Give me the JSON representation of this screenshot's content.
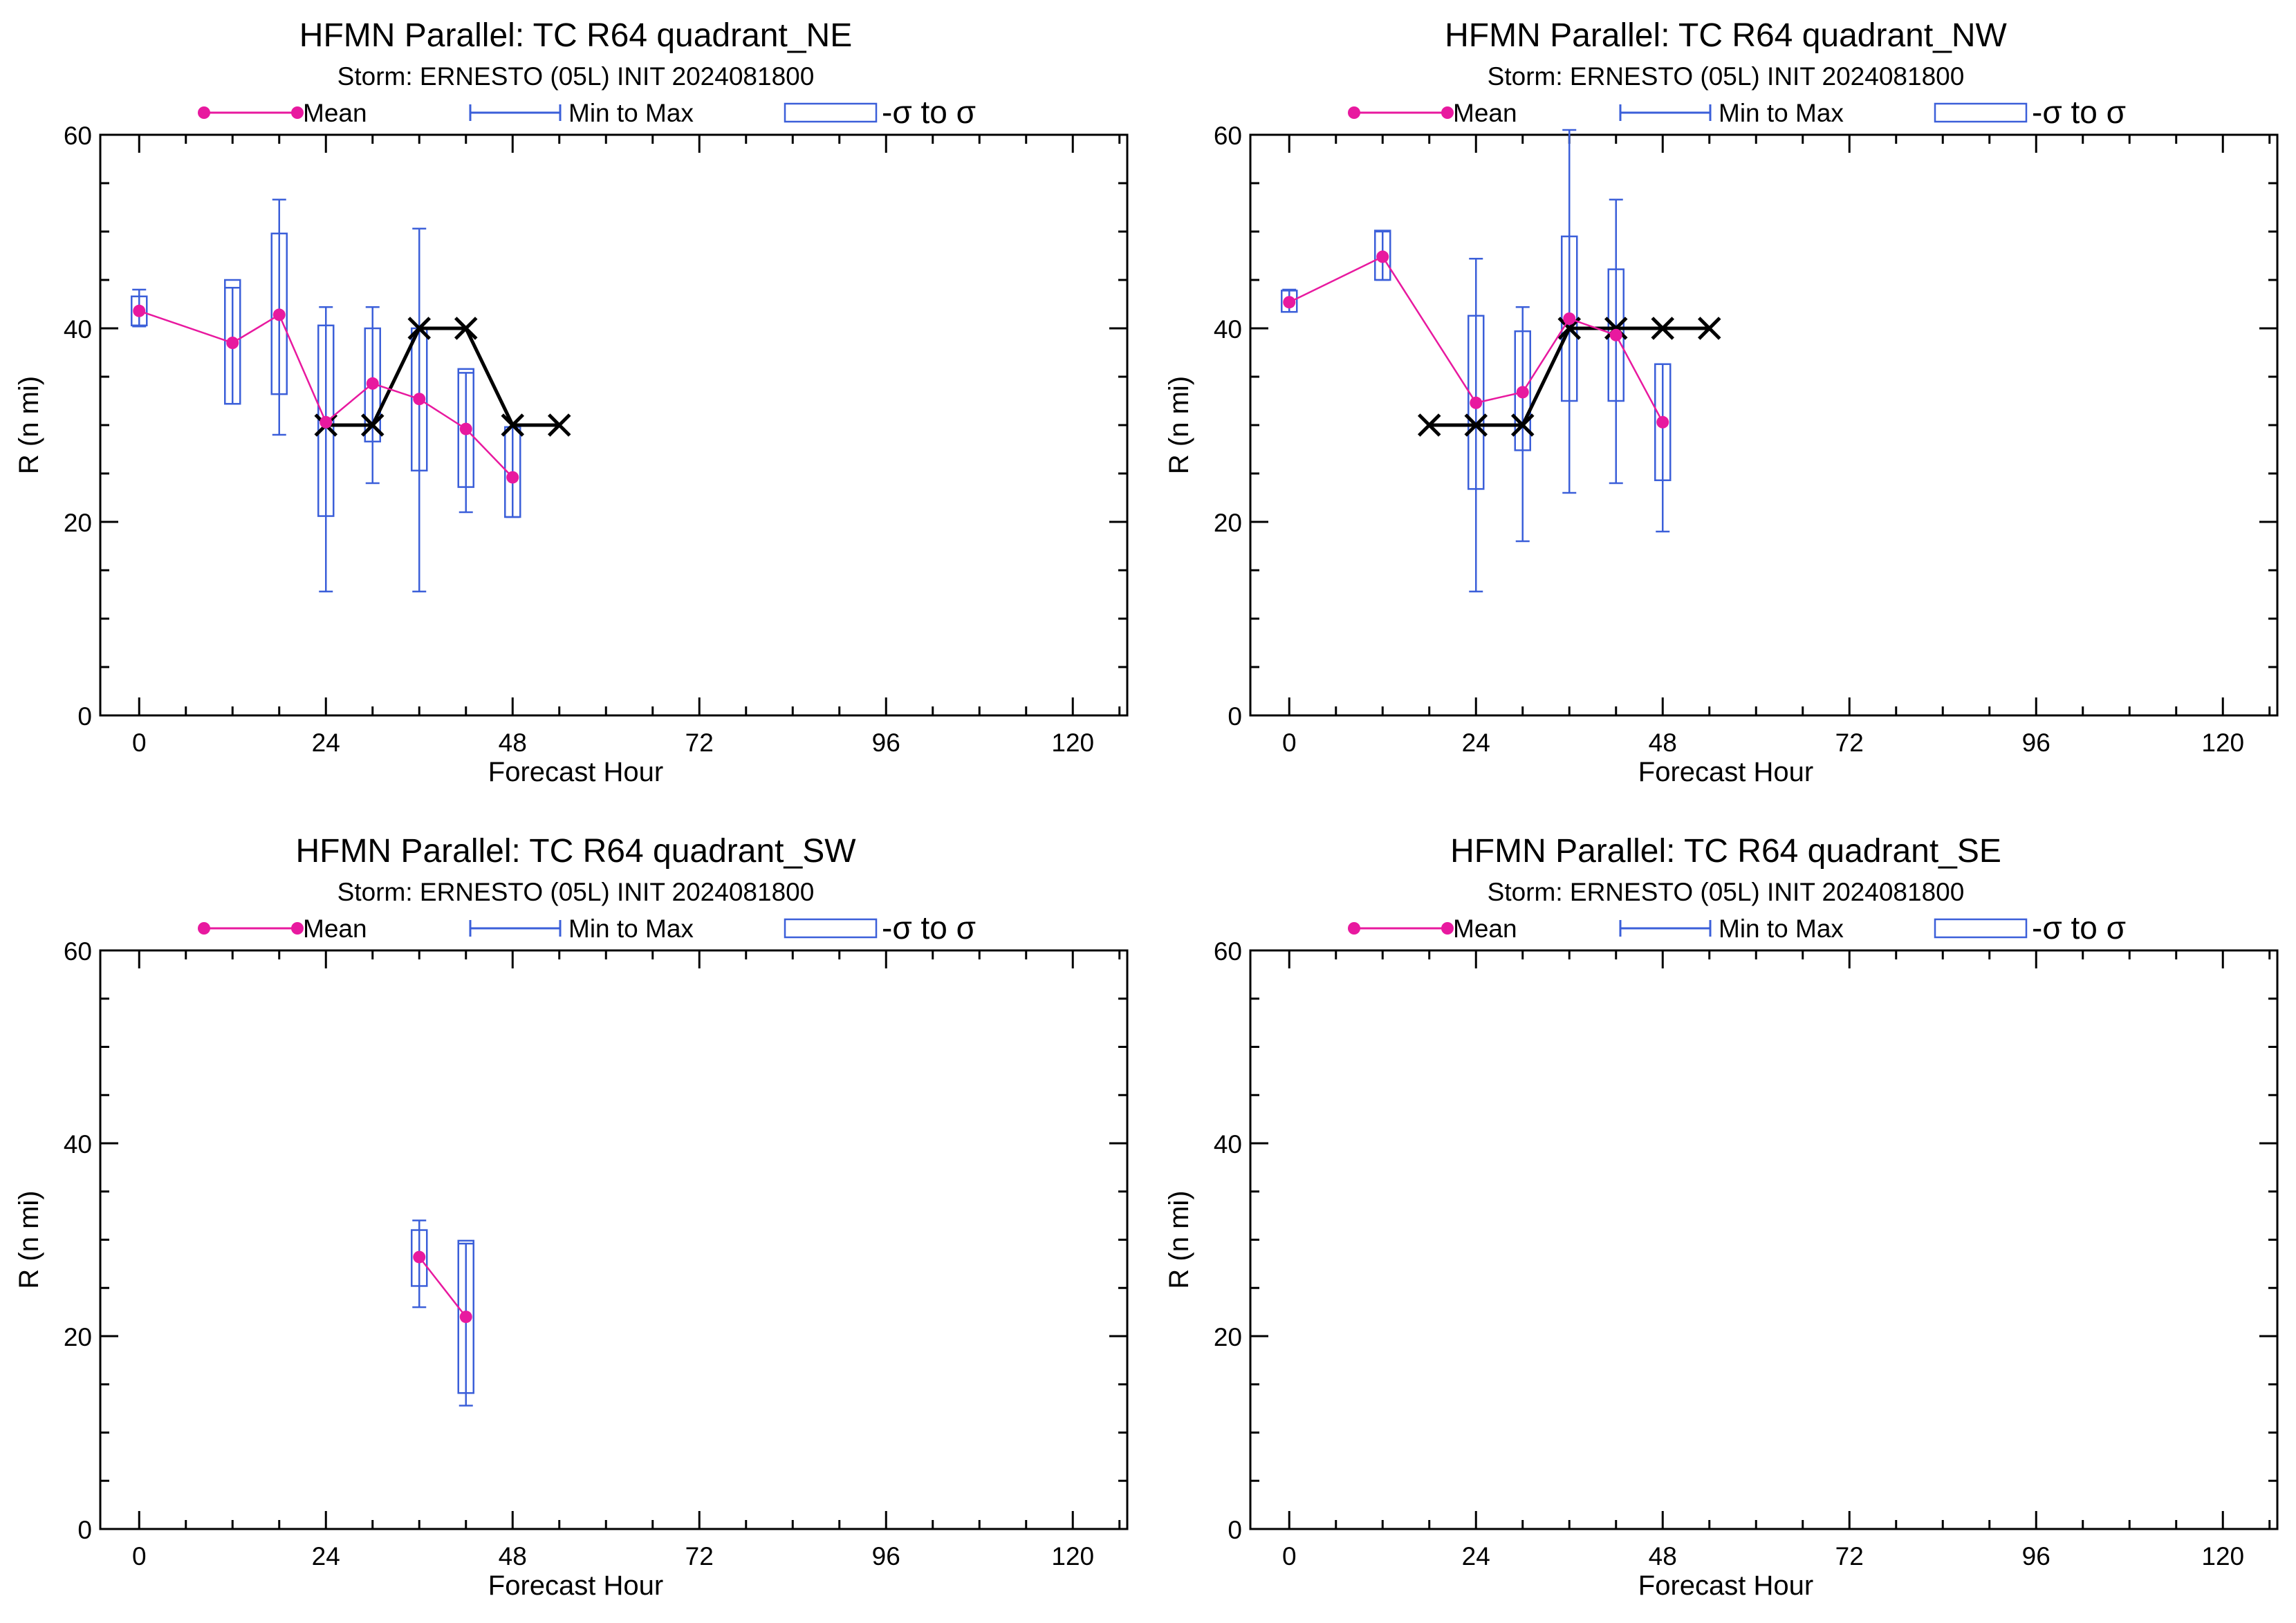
{
  "legend": {
    "mean_label": "Mean",
    "range_label": "Min to Max",
    "sigma_label": "-σ to σ"
  },
  "colors": {
    "mean": "#e8199f",
    "spread": "#3b5fd9",
    "best_track": "#000000",
    "axes": "#000000"
  },
  "chart_data": [
    {
      "type": "line",
      "title": "HFMN Parallel: TC  R64 quadrant_NE",
      "subtitle": "Storm: ERNESTO (05L) INIT 2024081800",
      "xlabel": "Forecast Hour",
      "ylabel": "R (n mi)",
      "xlim": [
        -5,
        127
      ],
      "ylim": [
        0,
        60
      ],
      "xticks": [
        0,
        24,
        48,
        72,
        96,
        120
      ],
      "yticks": [
        0,
        20,
        40,
        60
      ],
      "series": [
        {
          "name": "Mean",
          "x": [
            0,
            12,
            18,
            24,
            30,
            36,
            42,
            48
          ],
          "values": [
            41.8,
            38.5,
            41.4,
            30.3,
            34.3,
            32.7,
            29.6,
            24.6
          ]
        },
        {
          "name": "Min to Max",
          "x": [
            0,
            12,
            18,
            24,
            30,
            36,
            42,
            48
          ],
          "min": [
            40.2,
            32.2,
            29.0,
            12.8,
            24.0,
            12.8,
            21.0,
            20.5
          ],
          "max": [
            44.0,
            44.2,
            53.3,
            42.2,
            42.2,
            50.3,
            35.4,
            29.8
          ]
        },
        {
          "name": "-σ to σ",
          "x": [
            0,
            12,
            18,
            24,
            30,
            36,
            42,
            48
          ],
          "low": [
            40.3,
            32.2,
            33.2,
            20.6,
            28.3,
            25.3,
            23.6,
            20.5
          ],
          "high": [
            43.3,
            45.0,
            49.8,
            40.3,
            40.0,
            40.0,
            35.8,
            29.8
          ]
        },
        {
          "x": [
            24,
            30,
            36,
            42,
            48,
            54
          ],
          "values": [
            30,
            30,
            40,
            40,
            30,
            30
          ]
        }
      ]
    },
    {
      "type": "line",
      "title": "HFMN Parallel: TC  R64 quadrant_NW",
      "subtitle": "Storm: ERNESTO (05L) INIT 2024081800",
      "xlabel": "Forecast Hour",
      "ylabel": "R (n mi)",
      "xlim": [
        -5,
        127
      ],
      "ylim": [
        0,
        60
      ],
      "xticks": [
        0,
        24,
        48,
        72,
        96,
        120
      ],
      "yticks": [
        0,
        20,
        40,
        60
      ],
      "series": [
        {
          "name": "Mean",
          "x": [
            0,
            12,
            24,
            30,
            36,
            42,
            48
          ],
          "values": [
            42.7,
            47.4,
            32.3,
            33.4,
            41.0,
            39.3,
            30.3
          ]
        },
        {
          "name": "Min to Max",
          "x": [
            0,
            12,
            24,
            30,
            36,
            42,
            48
          ],
          "min": [
            41.7,
            45.0,
            12.8,
            18.0,
            23.0,
            24.0,
            19.0
          ],
          "max": [
            44.0,
            50.0,
            47.2,
            42.2,
            60.5,
            53.3,
            36.3
          ]
        },
        {
          "name": "-σ to σ",
          "x": [
            0,
            12,
            24,
            30,
            36,
            42,
            48
          ],
          "low": [
            41.7,
            45.0,
            23.4,
            27.4,
            32.5,
            32.5,
            24.3
          ],
          "high": [
            43.9,
            50.1,
            41.3,
            39.7,
            49.5,
            46.1,
            36.3
          ]
        },
        {
          "x": [
            18,
            24,
            30,
            36,
            42,
            48,
            54
          ],
          "values": [
            30,
            30,
            30,
            40,
            40,
            40,
            40
          ]
        }
      ]
    },
    {
      "type": "line",
      "title": "HFMN Parallel: TC  R64 quadrant_SW",
      "subtitle": "Storm: ERNESTO (05L) INIT 2024081800",
      "xlabel": "Forecast Hour",
      "ylabel": "R (n mi)",
      "xlim": [
        -5,
        127
      ],
      "ylim": [
        0,
        60
      ],
      "xticks": [
        0,
        24,
        48,
        72,
        96,
        120
      ],
      "yticks": [
        0,
        20,
        40,
        60
      ],
      "series": [
        {
          "name": "Mean",
          "x": [
            36,
            42
          ],
          "values": [
            28.2,
            22.0
          ]
        },
        {
          "name": "Min to Max",
          "x": [
            36,
            42
          ],
          "min": [
            23.0,
            12.8
          ],
          "max": [
            32.0,
            29.6
          ]
        },
        {
          "name": "-σ to σ",
          "x": [
            36,
            42
          ],
          "low": [
            25.2,
            14.1
          ],
          "high": [
            31.0,
            29.9
          ]
        },
        {
          "x": [],
          "values": []
        }
      ]
    },
    {
      "type": "line",
      "title": "HFMN Parallel: TC  R64 quadrant_SE",
      "subtitle": "Storm: ERNESTO (05L) INIT 2024081800",
      "xlabel": "Forecast Hour",
      "ylabel": "R (n mi)",
      "xlim": [
        -5,
        127
      ],
      "ylim": [
        0,
        60
      ],
      "xticks": [
        0,
        24,
        48,
        72,
        96,
        120
      ],
      "yticks": [
        0,
        20,
        40,
        60
      ],
      "series": [
        {
          "name": "Mean",
          "x": [],
          "values": []
        },
        {
          "name": "Min to Max",
          "x": [],
          "min": [],
          "max": []
        },
        {
          "name": "-σ to σ",
          "x": [],
          "low": [],
          "high": []
        },
        {
          "x": [],
          "values": []
        }
      ]
    }
  ]
}
